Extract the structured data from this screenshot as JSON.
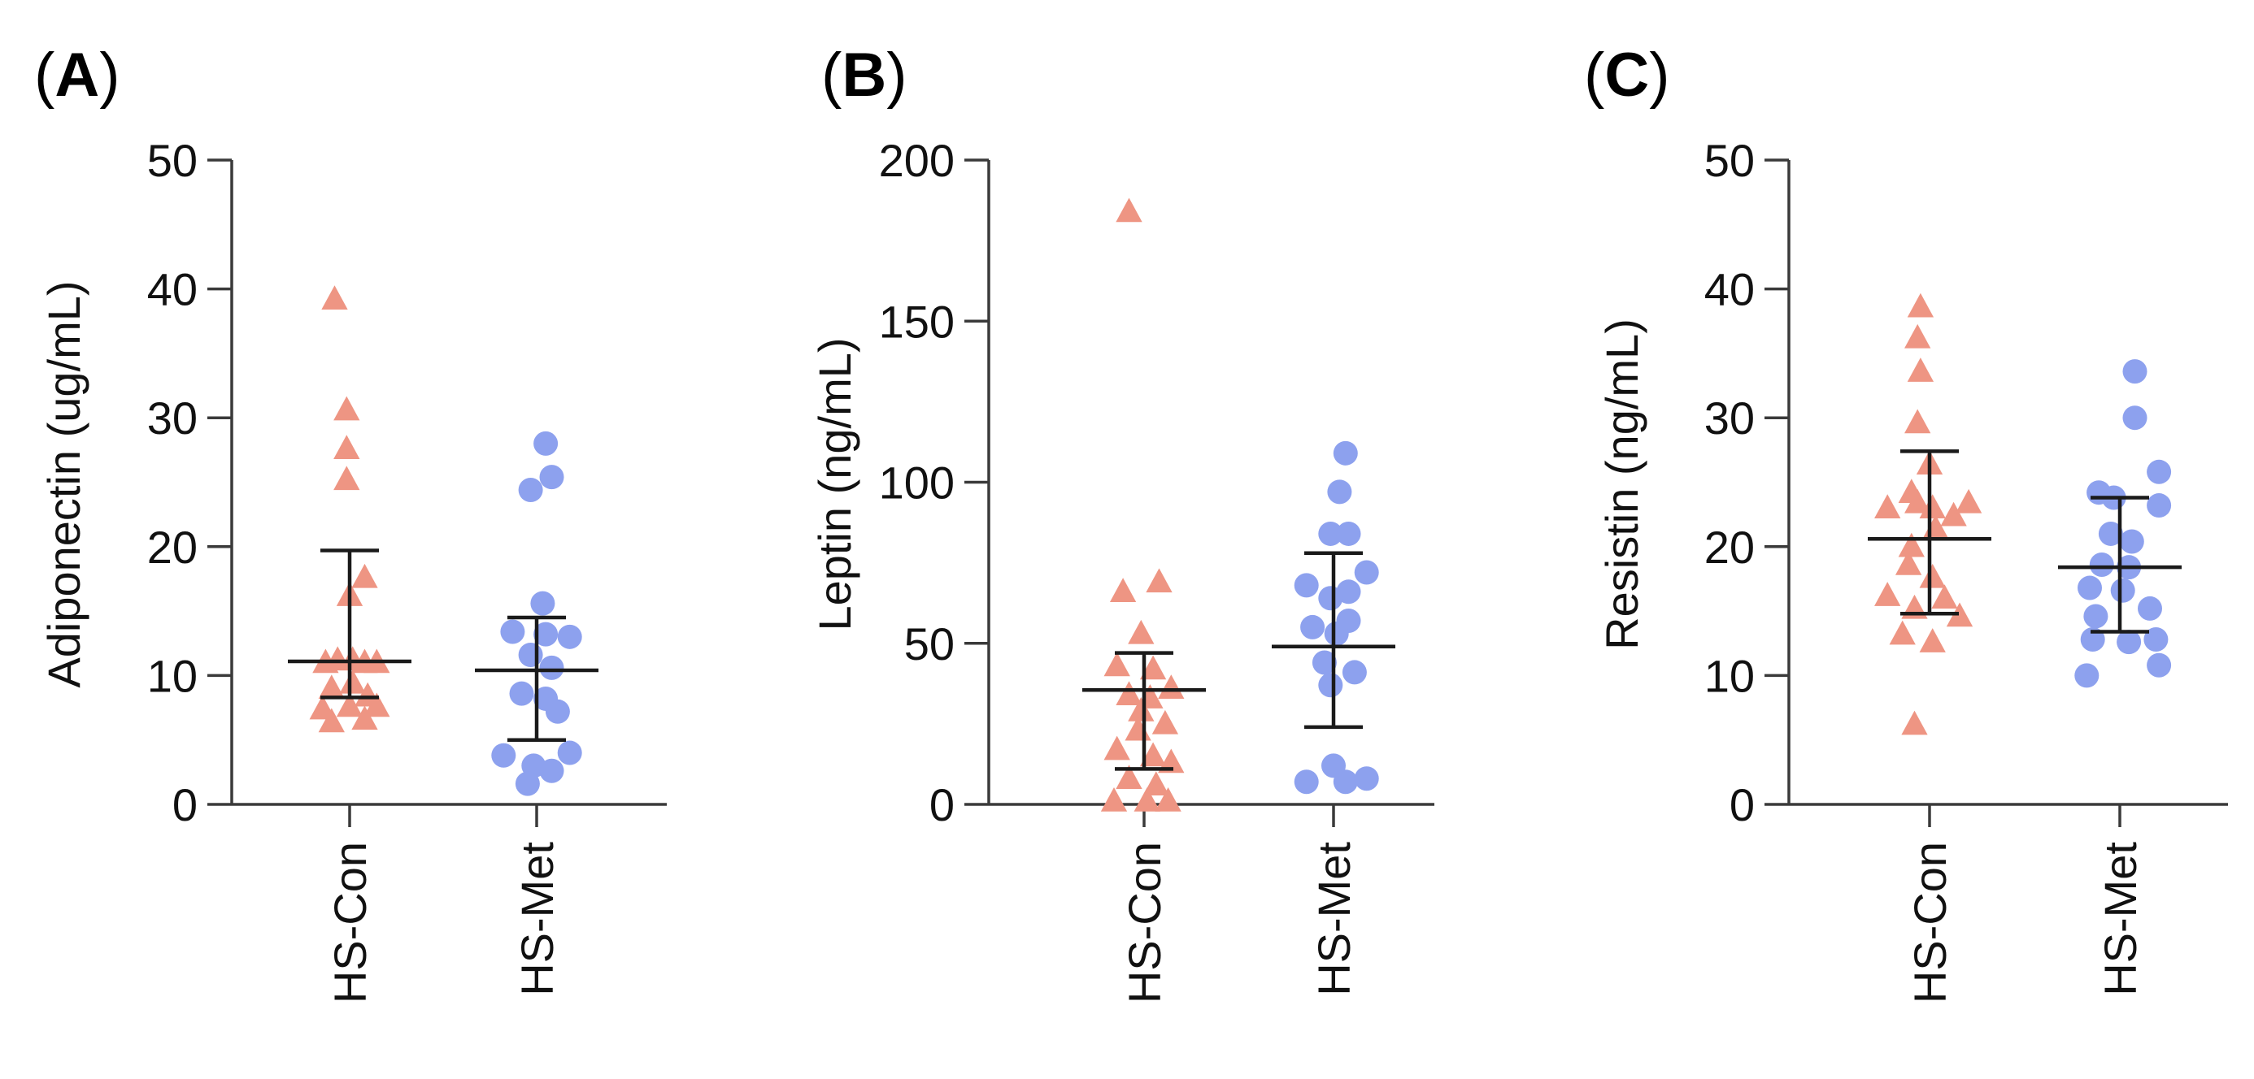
{
  "chart_data": [
    {
      "type": "scatter",
      "panel_label": "A",
      "ylabel": "Adiponectin (ug/mL)",
      "ylim": [
        0,
        50
      ],
      "yticks": [
        0,
        10,
        20,
        30,
        40,
        50
      ],
      "categories": [
        "HS-Con",
        "HS-Met"
      ],
      "series": [
        {
          "name": "HS-Con",
          "marker": "triangle",
          "color": "#ee9583",
          "points": [
            [
              -0.1,
              39.2
            ],
            [
              -0.02,
              30.6
            ],
            [
              -0.02,
              27.6
            ],
            [
              -0.02,
              25.2
            ],
            [
              0.1,
              17.6
            ],
            [
              0.0,
              16.2
            ],
            [
              -0.16,
              11.0
            ],
            [
              -0.08,
              11.2
            ],
            [
              0.02,
              11.2
            ],
            [
              0.1,
              11.0
            ],
            [
              0.18,
              11.0
            ],
            [
              -0.12,
              9.0
            ],
            [
              0.02,
              9.4
            ],
            [
              0.12,
              8.4
            ],
            [
              -0.18,
              7.4
            ],
            [
              0.0,
              7.6
            ],
            [
              0.18,
              7.6
            ],
            [
              -0.12,
              6.4
            ],
            [
              0.1,
              6.6
            ]
          ],
          "center": 11.1,
          "error_low": 8.3,
          "error_high": 19.7
        },
        {
          "name": "HS-Met",
          "marker": "circle",
          "color": "#8da1ee",
          "points": [
            [
              0.06,
              28.0
            ],
            [
              0.1,
              25.4
            ],
            [
              -0.04,
              24.4
            ],
            [
              0.04,
              15.6
            ],
            [
              -0.16,
              13.4
            ],
            [
              0.06,
              13.2
            ],
            [
              0.22,
              13.0
            ],
            [
              -0.04,
              11.6
            ],
            [
              0.1,
              10.6
            ],
            [
              -0.1,
              8.6
            ],
            [
              0.06,
              8.2
            ],
            [
              0.14,
              7.2
            ],
            [
              -0.22,
              3.8
            ],
            [
              0.22,
              4.0
            ],
            [
              -0.02,
              3.0
            ],
            [
              0.1,
              2.6
            ],
            [
              -0.06,
              1.6
            ]
          ],
          "center": 10.4,
          "error_low": 5.0,
          "error_high": 14.5
        }
      ]
    },
    {
      "type": "scatter",
      "panel_label": "B",
      "ylabel": "Leptin (ng/mL)",
      "ylim": [
        0,
        200
      ],
      "yticks": [
        0,
        50,
        100,
        150,
        200
      ],
      "categories": [
        "HS-Con",
        "HS-Met"
      ],
      "series": [
        {
          "name": "HS-Con",
          "marker": "triangle",
          "color": "#ee9583",
          "points": [
            [
              -0.1,
              184
            ],
            [
              -0.14,
              66
            ],
            [
              0.1,
              69
            ],
            [
              -0.02,
              53
            ],
            [
              -0.18,
              43
            ],
            [
              0.06,
              42
            ],
            [
              0.18,
              36
            ],
            [
              -0.1,
              34
            ],
            [
              0.04,
              33
            ],
            [
              -0.02,
              29
            ],
            [
              0.14,
              25
            ],
            [
              -0.04,
              23
            ],
            [
              -0.18,
              17
            ],
            [
              0.06,
              15
            ],
            [
              0.18,
              13
            ],
            [
              -0.1,
              8
            ],
            [
              0.08,
              6
            ],
            [
              -0.2,
              1
            ],
            [
              0.02,
              1
            ],
            [
              0.16,
              1
            ]
          ],
          "center": 35.5,
          "error_low": 11,
          "error_high": 47
        },
        {
          "name": "HS-Met",
          "marker": "circle",
          "color": "#8da1ee",
          "points": [
            [
              0.08,
              109
            ],
            [
              0.04,
              97
            ],
            [
              -0.02,
              84
            ],
            [
              0.1,
              84
            ],
            [
              0.22,
              72
            ],
            [
              -0.18,
              68
            ],
            [
              0.1,
              66
            ],
            [
              -0.02,
              64
            ],
            [
              0.1,
              57
            ],
            [
              -0.14,
              55
            ],
            [
              0.02,
              53
            ],
            [
              -0.06,
              44
            ],
            [
              0.14,
              41
            ],
            [
              -0.02,
              37
            ],
            [
              0.0,
              12
            ],
            [
              0.08,
              7
            ],
            [
              -0.18,
              7
            ],
            [
              0.22,
              8
            ]
          ],
          "center": 49,
          "error_low": 24,
          "error_high": 78
        }
      ]
    },
    {
      "type": "scatter",
      "panel_label": "C",
      "ylabel": "Resistin (ng/mL)",
      "ylim": [
        0,
        50
      ],
      "yticks": [
        0,
        10,
        20,
        30,
        40,
        50
      ],
      "categories": [
        "HS-Con",
        "HS-Met"
      ],
      "series": [
        {
          "name": "HS-Con",
          "marker": "triangle",
          "color": "#ee9583",
          "points": [
            [
              -0.06,
              38.6
            ],
            [
              -0.08,
              36.2
            ],
            [
              -0.06,
              33.6
            ],
            [
              -0.08,
              29.6
            ],
            [
              0.0,
              26.4
            ],
            [
              -0.12,
              24.2
            ],
            [
              -0.28,
              23.0
            ],
            [
              -0.08,
              23.4
            ],
            [
              0.02,
              23.0
            ],
            [
              0.16,
              22.4
            ],
            [
              0.26,
              23.4
            ],
            [
              0.04,
              21.4
            ],
            [
              -0.12,
              20.0
            ],
            [
              -0.14,
              18.6
            ],
            [
              0.02,
              17.6
            ],
            [
              -0.28,
              16.2
            ],
            [
              -0.1,
              15.2
            ],
            [
              0.2,
              14.6
            ],
            [
              0.1,
              16.0
            ],
            [
              -0.18,
              13.2
            ],
            [
              0.02,
              12.6
            ],
            [
              -0.1,
              6.2
            ]
          ],
          "center": 20.6,
          "error_low": 14.8,
          "error_high": 27.4
        },
        {
          "name": "HS-Met",
          "marker": "circle",
          "color": "#8da1ee",
          "points": [
            [
              0.1,
              33.6
            ],
            [
              0.1,
              30.0
            ],
            [
              -0.14,
              24.2
            ],
            [
              0.26,
              25.8
            ],
            [
              -0.04,
              23.8
            ],
            [
              0.26,
              23.2
            ],
            [
              -0.06,
              21.0
            ],
            [
              0.08,
              20.4
            ],
            [
              -0.12,
              18.6
            ],
            [
              0.06,
              18.4
            ],
            [
              -0.2,
              16.8
            ],
            [
              0.02,
              16.6
            ],
            [
              0.2,
              15.2
            ],
            [
              -0.16,
              14.6
            ],
            [
              0.24,
              12.8
            ],
            [
              -0.18,
              12.8
            ],
            [
              0.06,
              12.6
            ],
            [
              -0.22,
              10.0
            ],
            [
              0.26,
              10.8
            ]
          ],
          "center": 18.4,
          "error_low": 13.4,
          "error_high": 23.8
        }
      ]
    }
  ]
}
